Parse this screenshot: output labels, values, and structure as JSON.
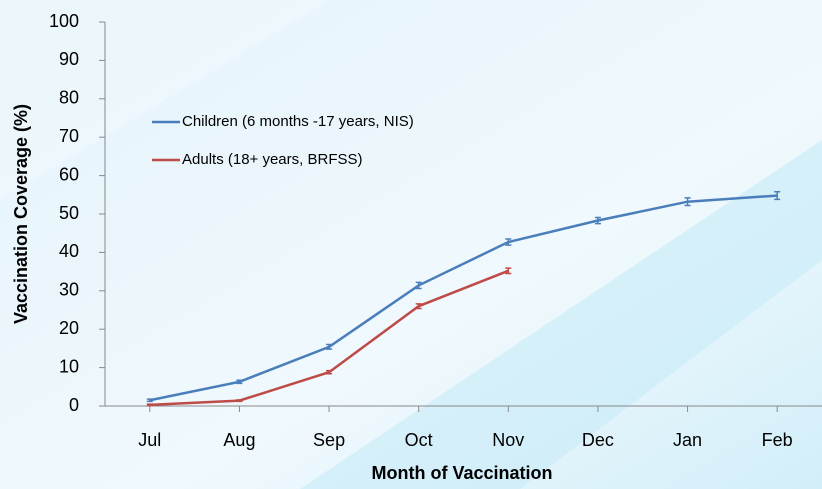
{
  "chart_data": {
    "type": "line",
    "xlabel": "Month of Vaccination",
    "ylabel": "Vaccination Coverage (%)",
    "categories": [
      "Jul",
      "Aug",
      "Sep",
      "Oct",
      "Nov",
      "Dec",
      "Jan",
      "Feb"
    ],
    "series": [
      {
        "name": "Children (6 months -17 years, NIS)",
        "color": "#4a7ebb",
        "values": [
          1.5,
          6.3,
          15.4,
          31.4,
          42.7,
          48.3,
          53.2,
          54.8
        ],
        "errors": [
          0.3,
          0.4,
          0.6,
          0.8,
          0.8,
          0.8,
          1.0,
          1.0
        ]
      },
      {
        "name": "Adults (18+ years, BRFSS)",
        "color": "#be4b48",
        "values": [
          0.3,
          1.4,
          8.8,
          26.0,
          35.2,
          null,
          null,
          null
        ],
        "errors": [
          0.2,
          0.2,
          0.4,
          0.6,
          0.7,
          null,
          null,
          null
        ]
      }
    ],
    "ylim": [
      0,
      100
    ],
    "yticks": [
      0,
      10,
      20,
      30,
      40,
      50,
      60,
      70,
      80,
      90,
      100
    ],
    "grid": false,
    "legend": "upper left"
  }
}
